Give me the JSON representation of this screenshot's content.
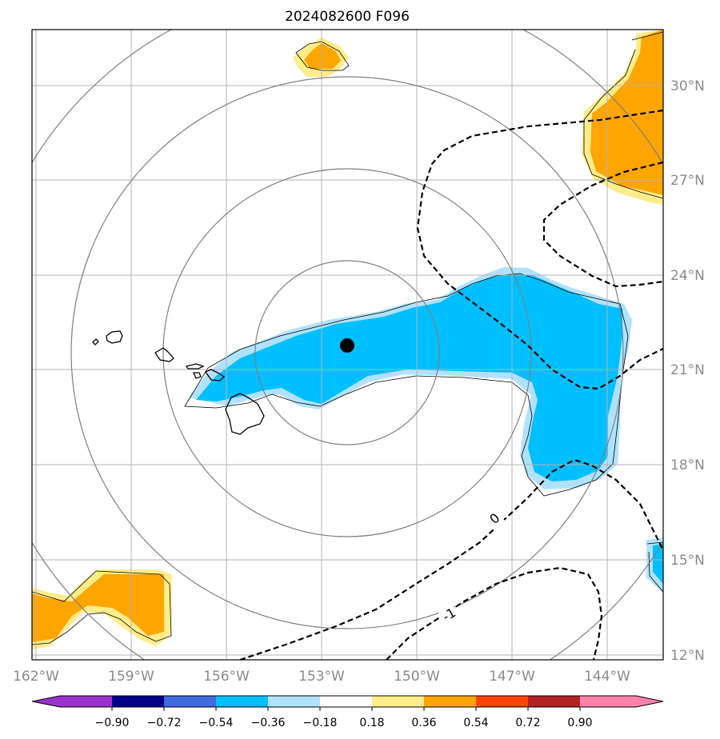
{
  "chart_data": {
    "type": "map",
    "title": "2024082600 F096",
    "projection": "lat-lon",
    "lon_range": [
      -162.3,
      -142.8
    ],
    "lat_range": [
      11.9,
      32.3
    ],
    "lon_ticks": [
      {
        "value": -162,
        "label": "162°W"
      },
      {
        "value": -159,
        "label": "159°W"
      },
      {
        "value": -156,
        "label": "156°W"
      },
      {
        "value": -153,
        "label": "153°W"
      },
      {
        "value": -150,
        "label": "150°W"
      },
      {
        "value": -147,
        "label": "147°W"
      },
      {
        "value": -144,
        "label": "144°W"
      }
    ],
    "lat_ticks": [
      {
        "value": 12,
        "label": "12°N"
      },
      {
        "value": 15,
        "label": "15°N"
      },
      {
        "value": 18,
        "label": "18°N"
      },
      {
        "value": 21,
        "label": "21°N"
      },
      {
        "value": 24,
        "label": "24°N"
      },
      {
        "value": 27,
        "label": "27°N"
      },
      {
        "value": 30,
        "label": "30°N"
      }
    ],
    "grid": true,
    "center_marker": {
      "lon": -152.3,
      "lat": 21.8,
      "color": "#000000"
    },
    "range_rings_deg": [
      2.85,
      5.7,
      8.55,
      11.4
    ],
    "shading_levels": [
      -0.9,
      -0.72,
      -0.54,
      -0.36,
      -0.18,
      0.18,
      0.36,
      0.54,
      0.72,
      0.9
    ],
    "colorbar_labels": [
      "−0.90",
      "−0.72",
      "−0.54",
      "−0.36",
      "−0.18",
      "0.18",
      "0.36",
      "0.54",
      "0.72",
      "0.90"
    ],
    "colorbar_colors": [
      "#9932cc",
      "#00008b",
      "#4169e1",
      "#00bfff",
      "#b0e2ff",
      "#ffffff",
      "#ffec8b",
      "#ffa500",
      "#ff4500",
      "#b22222",
      "#ff82ab"
    ],
    "contour_labels": [
      {
        "text": "0",
        "lon": -146.6,
        "lat": 16.7
      },
      {
        "text": "-1",
        "lon": -149.0,
        "lat": 13.1
      }
    ]
  }
}
